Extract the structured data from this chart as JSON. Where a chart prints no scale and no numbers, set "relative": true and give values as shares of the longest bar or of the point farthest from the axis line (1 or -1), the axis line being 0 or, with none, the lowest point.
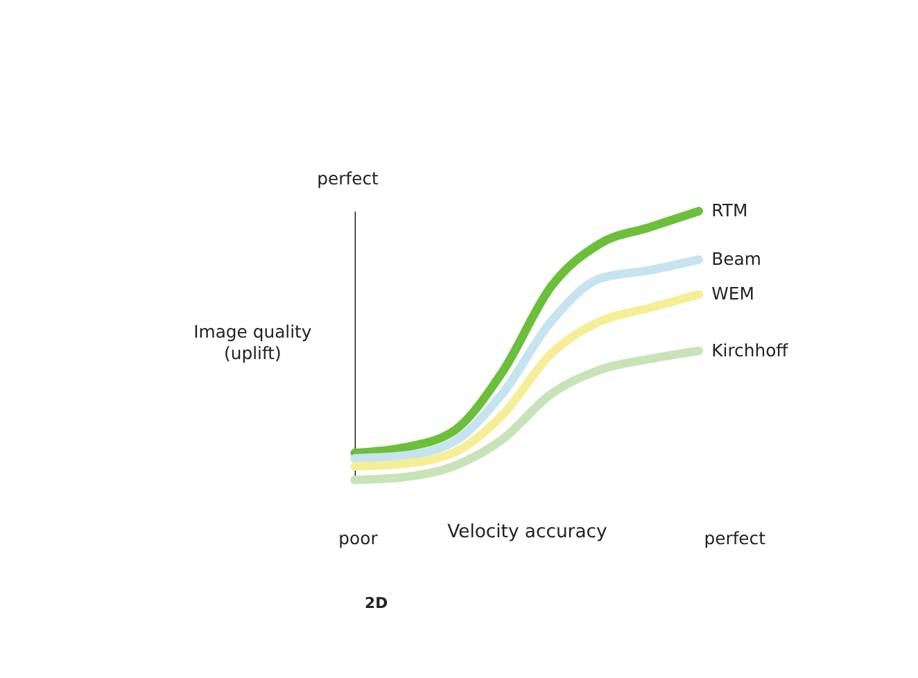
{
  "chart_data": {
    "type": "line",
    "relative": true,
    "xlabel": "Velocity accuracy",
    "ylabel": "Image quality\n(uplift)",
    "legend": false,
    "grid": false,
    "line_style": "solid",
    "marker": "none",
    "categories": [
      null,
      null,
      null,
      null,
      null,
      null,
      null,
      null
    ],
    "series": [
      {
        "name": "RTM",
        "color": "#6cbf3a",
        "values": [
          0.1,
          0.12,
          0.18,
          0.4,
          0.72,
          0.88,
          0.94,
          1.0
        ]
      },
      {
        "name": "Beam",
        "color": "#c5e4ef",
        "values": [
          0.08,
          0.09,
          0.14,
          0.32,
          0.59,
          0.75,
          0.78,
          0.82
        ]
      },
      {
        "name": "WEM",
        "color": "#f5ee96",
        "values": [
          0.05,
          0.06,
          0.1,
          0.24,
          0.47,
          0.59,
          0.64,
          0.69
        ]
      },
      {
        "name": "Kirchhoff",
        "color": "#c9e3b9",
        "values": [
          0.0,
          0.01,
          0.05,
          0.15,
          0.32,
          0.41,
          0.45,
          0.48
        ]
      }
    ],
    "annotations": [
      "perfect",
      "poor",
      "perfect",
      "2D"
    ]
  }
}
